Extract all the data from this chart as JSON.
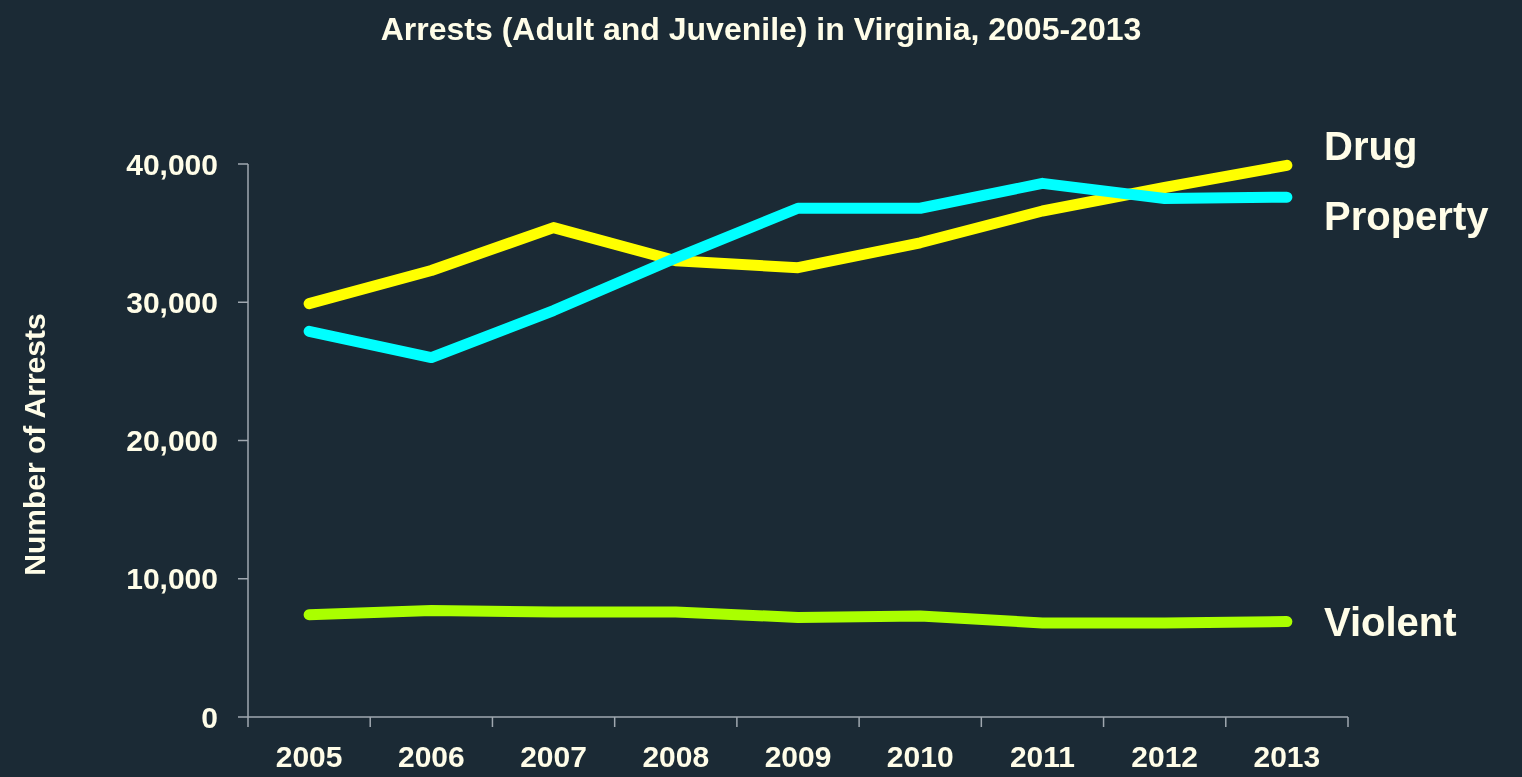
{
  "chart_data": {
    "type": "line",
    "title": "Arrests (Adult and Juvenile) in Virginia, 2005-2013",
    "ylabel": "Number of Arrests",
    "categories": [
      "2005",
      "2006",
      "2007",
      "2008",
      "2009",
      "2010",
      "2011",
      "2012",
      "2013"
    ],
    "ylim": [
      0,
      40000
    ],
    "yticks": [
      {
        "value": 0,
        "label": "0"
      },
      {
        "value": 10000,
        "label": "10,000"
      },
      {
        "value": 20000,
        "label": "20,000"
      },
      {
        "value": 30000,
        "label": "30,000"
      },
      {
        "value": 40000,
        "label": "40,000"
      }
    ],
    "grid": false,
    "marker": "none",
    "line_style": "solid",
    "series": [
      {
        "name": "Drug",
        "color": "#ffff00",
        "values": [
          29900,
          32300,
          35400,
          33000,
          32500,
          34300,
          36600,
          38300,
          39900
        ]
      },
      {
        "name": "Property",
        "color": "#00ffff",
        "values": [
          27900,
          26000,
          29400,
          33200,
          36800,
          36800,
          38600,
          37500,
          37600
        ]
      },
      {
        "name": "Violent",
        "color": "#aaff00",
        "values": [
          7400,
          7700,
          7600,
          7600,
          7200,
          7300,
          6800,
          6800,
          6900
        ]
      }
    ]
  }
}
